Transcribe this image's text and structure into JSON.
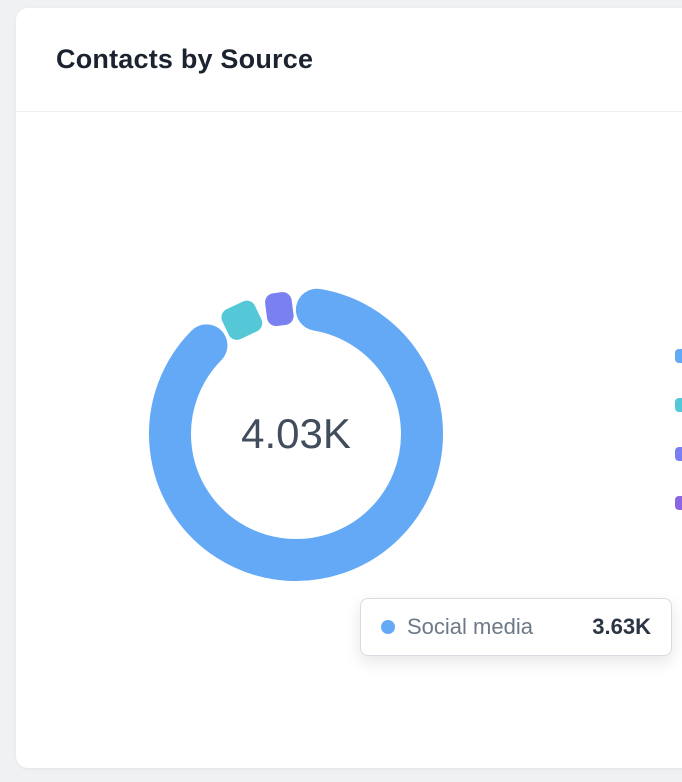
{
  "card": {
    "title": "Contacts by Source"
  },
  "chart_data": {
    "type": "donut",
    "title": "Contacts by Source",
    "center_label": "4.03K",
    "total": 4030,
    "segments": [
      {
        "name": "Social media",
        "value": 3630,
        "value_display": "3.63K",
        "color": "#64a9f6"
      },
      {
        "name": "",
        "value": 230,
        "value_display": "",
        "color": "#55c8d8"
      },
      {
        "name": "",
        "value": 170,
        "value_display": "",
        "color": "#7b80f1"
      }
    ],
    "legend_position": "right",
    "legend_markers": [
      "#64a9f6",
      "#55c8d8",
      "#7b80f1",
      "#8a66e0"
    ]
  },
  "tooltip": {
    "label": "Social media",
    "value": "3.63K",
    "marker_color": "#64a9f6"
  }
}
